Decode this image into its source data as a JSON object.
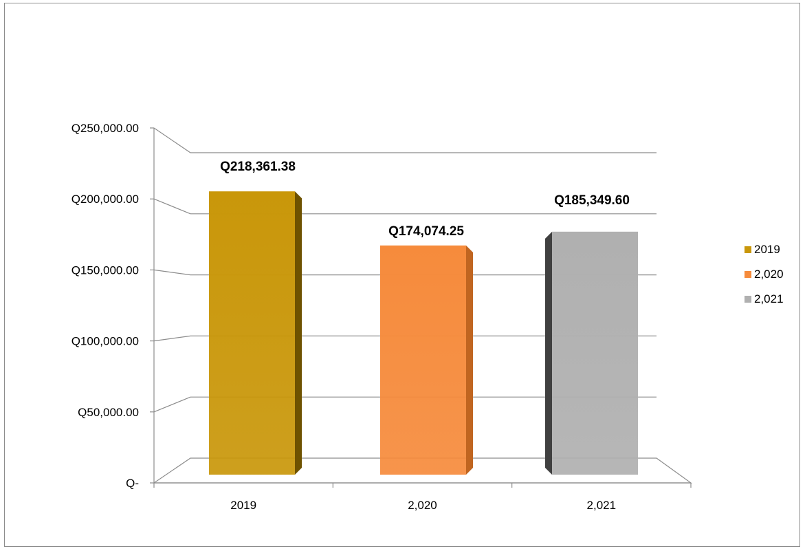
{
  "chart_data": {
    "type": "bar",
    "categories": [
      "2019",
      "2,020",
      "2,021"
    ],
    "values": [
      218361.38,
      174074.25,
      185349.6
    ],
    "data_labels": [
      "Q218,361.38",
      "Q174,074.25",
      "Q185,349.60"
    ],
    "ylim": [
      0,
      250000
    ],
    "ytick_values": [
      0,
      50000,
      100000,
      150000,
      200000,
      250000
    ],
    "ytick_labels": [
      "Q-",
      "Q50,000.00",
      "Q100,000.00",
      "Q150,000.00",
      "Q200,000.00",
      "Q250,000.00"
    ],
    "legend": [
      "2019",
      "2,020",
      "2,021"
    ],
    "legend_position": "right",
    "colors": [
      "#C9970A",
      "#F68B3C",
      "#B0B0B0"
    ],
    "side_colors": [
      "#6E5200",
      "#C06520",
      "#404040"
    ],
    "grid": true,
    "style": "3d"
  }
}
